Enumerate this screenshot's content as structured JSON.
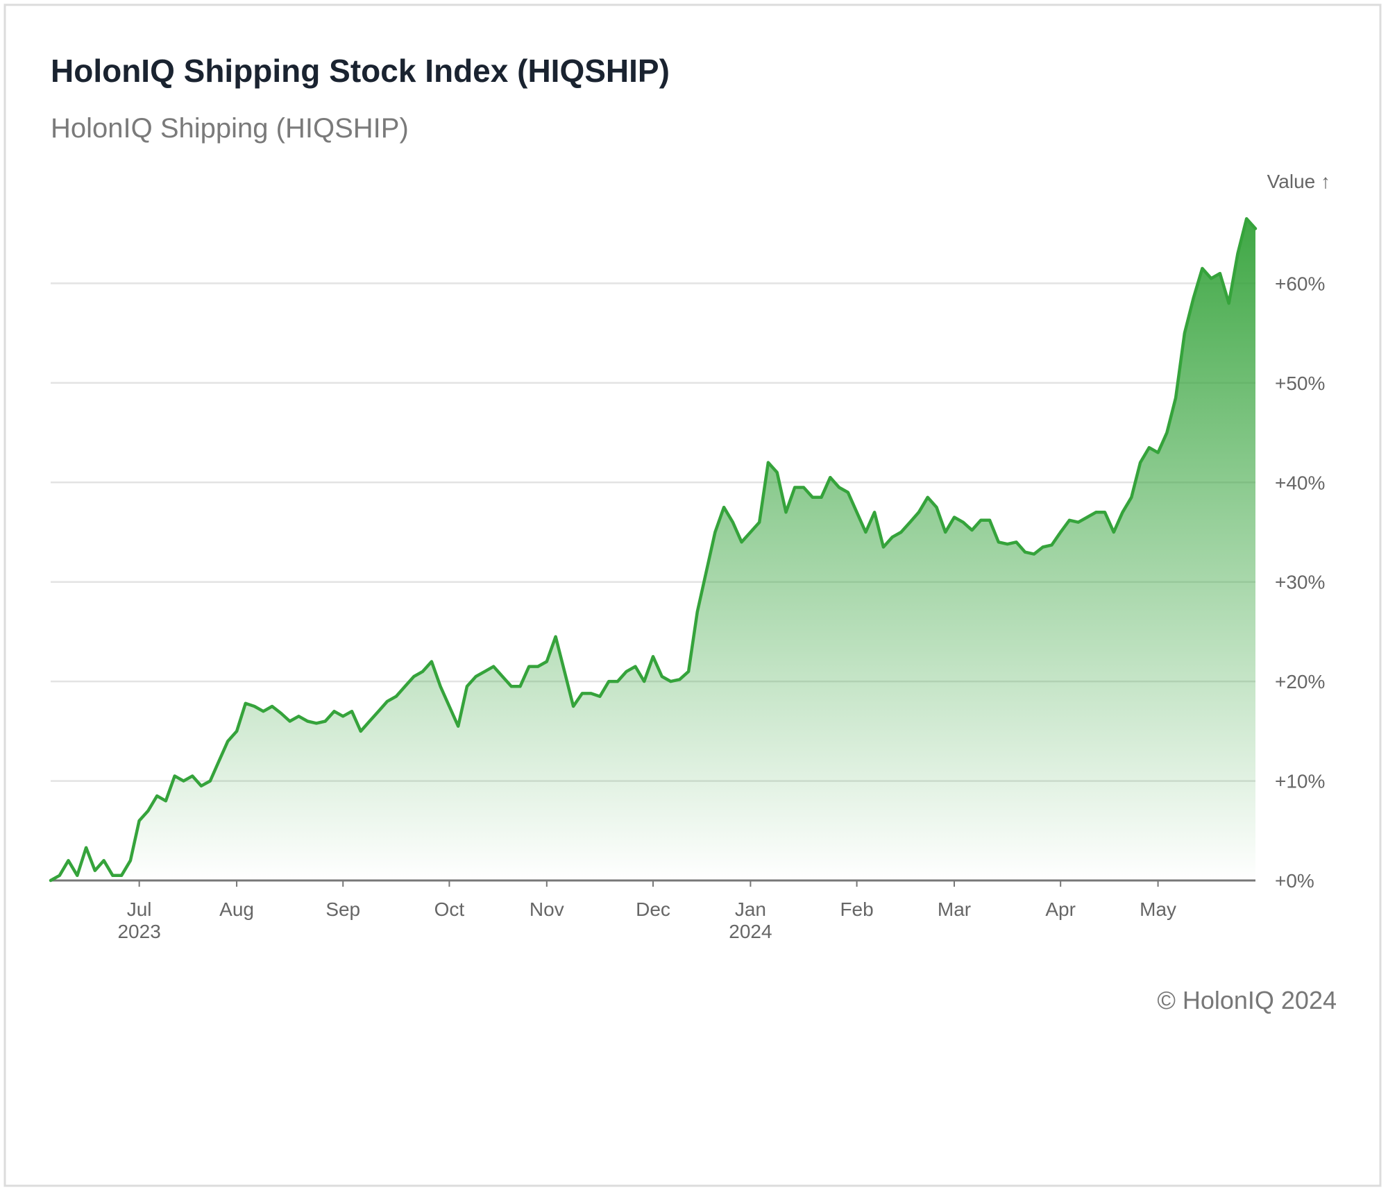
{
  "chart_data": {
    "type": "area",
    "title": "HolonIQ Shipping Stock Index (HIQSHIP)",
    "subtitle": "HolonIQ Shipping (HIQSHIP)",
    "y_axis_label": "Value ↑",
    "footer": "© HolonIQ 2024",
    "color": "#35a33b",
    "grid": true,
    "values": [
      0,
      0.5,
      2,
      0.5,
      3.3,
      1,
      2,
      0.5,
      0.5,
      2,
      6,
      7,
      8.5,
      8,
      10.5,
      10,
      10.5,
      9.5,
      10,
      12,
      14,
      15,
      17.8,
      17.5,
      17,
      17.5,
      16.8,
      16,
      16.5,
      16,
      15.8,
      16,
      17,
      16.5,
      17,
      15,
      16,
      17,
      18,
      18.5,
      19.5,
      20.5,
      21,
      22,
      19.5,
      17.5,
      15.5,
      19.5,
      20.5,
      21,
      21.5,
      20.5,
      19.5,
      19.5,
      21.5,
      21.5,
      22,
      24.5,
      21,
      17.5,
      18.8,
      18.8,
      18.5,
      20,
      20,
      21,
      21.5,
      20,
      22.5,
      20.5,
      20,
      20.2,
      21,
      27,
      31,
      35,
      37.5,
      36,
      34,
      35,
      36,
      42,
      41,
      37,
      39.5,
      39.5,
      38.5,
      38.5,
      40.5,
      39.5,
      39,
      37,
      35,
      37,
      33.5,
      34.5,
      35,
      36,
      37,
      38.5,
      37.5,
      35,
      36.5,
      36,
      35.2,
      36.2,
      36.2,
      34,
      33.8,
      34,
      33,
      32.8,
      33.5,
      33.7,
      35,
      36.2,
      36,
      36.5,
      37,
      37,
      35,
      37,
      38.5,
      42,
      43.5,
      43,
      45,
      48.5,
      55,
      58.5,
      61.5,
      60.5,
      61,
      58,
      63,
      66.5,
      65.5
    ],
    "xlim": [
      0,
      136
    ],
    "xticks": [
      {
        "value": 10,
        "label": "Jul",
        "sublabel": "2023"
      },
      {
        "value": 21,
        "label": "Aug"
      },
      {
        "value": 33,
        "label": "Sep"
      },
      {
        "value": 45,
        "label": "Oct"
      },
      {
        "value": 56,
        "label": "Nov"
      },
      {
        "value": 68,
        "label": "Dec"
      },
      {
        "value": 79,
        "label": "Jan",
        "sublabel": "2024"
      },
      {
        "value": 91,
        "label": "Feb"
      },
      {
        "value": 102,
        "label": "Mar"
      },
      {
        "value": 114,
        "label": "Apr"
      },
      {
        "value": 125,
        "label": "May"
      }
    ],
    "ylim": [
      0,
      70
    ],
    "yticks": [
      {
        "value": 0,
        "label": "+0%"
      },
      {
        "value": 10,
        "label": "+10%"
      },
      {
        "value": 20,
        "label": "+20%"
      },
      {
        "value": 30,
        "label": "+30%"
      },
      {
        "value": 40,
        "label": "+40%"
      },
      {
        "value": 50,
        "label": "+50%"
      },
      {
        "value": 60,
        "label": "+60%"
      }
    ]
  }
}
